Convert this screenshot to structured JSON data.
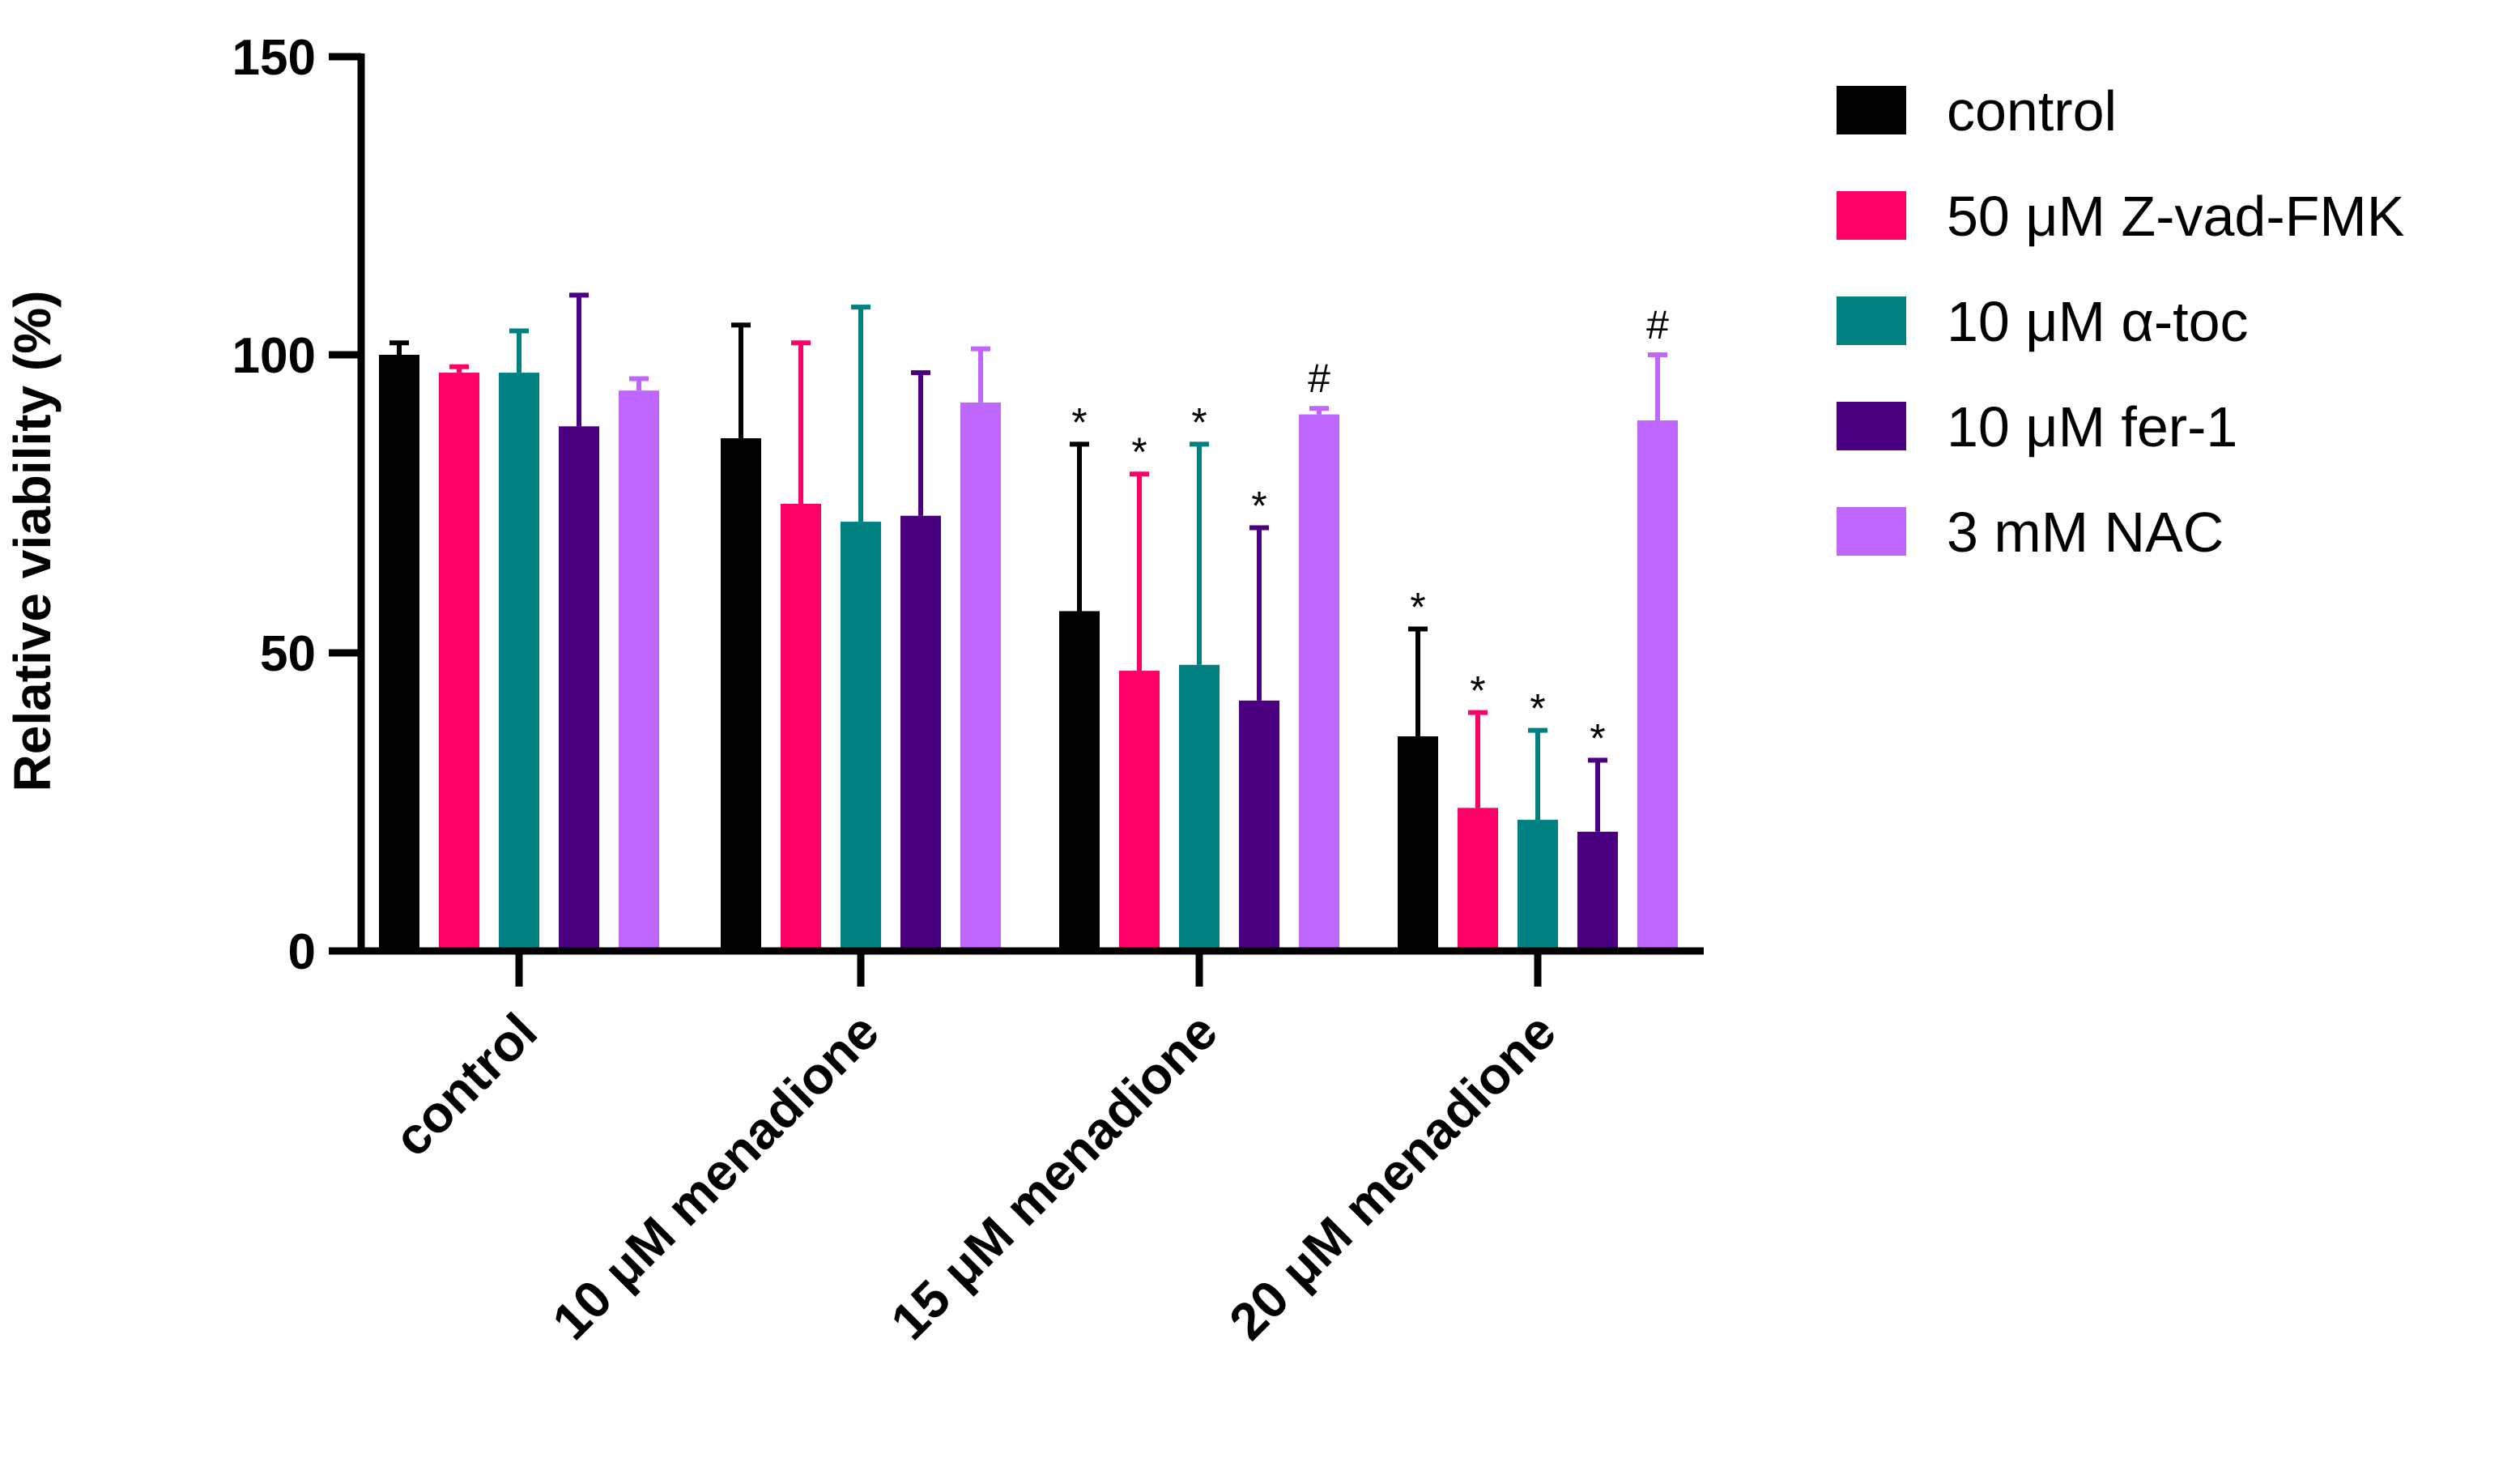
{
  "chart_data": {
    "type": "bar",
    "title": "",
    "xlabel": "",
    "ylabel": "Relative viability (%)",
    "ylim": [
      0,
      150
    ],
    "yticks": [
      0,
      50,
      100,
      150
    ],
    "grid": false,
    "legend_position": "top-right",
    "categories": [
      "control",
      "10 μM menadione",
      "15 μM menadione",
      "20 μM menadione"
    ],
    "series": [
      {
        "name": "control",
        "color": "#000000",
        "values": [
          100,
          86,
          57,
          36
        ],
        "error": [
          2,
          19,
          28,
          18
        ],
        "annotations": [
          "",
          "",
          "*",
          "*"
        ]
      },
      {
        "name": "50 μM Z-vad-FMK",
        "color": "#ff0066",
        "values": [
          97,
          75,
          47,
          24
        ],
        "error": [
          1,
          27,
          33,
          16
        ],
        "annotations": [
          "",
          "",
          "*",
          "*"
        ]
      },
      {
        "name": "10 μM α-toc",
        "color": "#008080",
        "values": [
          97,
          72,
          48,
          22
        ],
        "error": [
          7,
          36,
          37,
          15
        ],
        "annotations": [
          "",
          "",
          "*",
          "*"
        ]
      },
      {
        "name": "10 μM fer-1",
        "color": "#4b0082",
        "values": [
          88,
          73,
          42,
          20
        ],
        "error": [
          22,
          24,
          29,
          12
        ],
        "annotations": [
          "",
          "",
          "*",
          "*"
        ]
      },
      {
        "name": "3 mM NAC",
        "color": "#bf66ff",
        "values": [
          94,
          92,
          90,
          89
        ],
        "error": [
          2,
          9,
          1,
          11
        ],
        "annotations": [
          "",
          "",
          "#",
          "#"
        ]
      }
    ]
  }
}
